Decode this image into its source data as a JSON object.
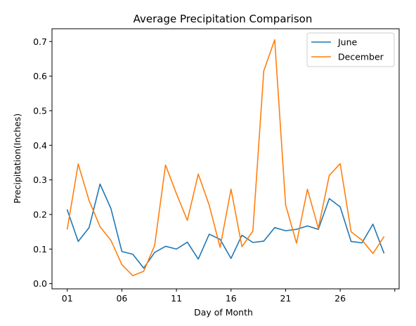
{
  "chart_data": {
    "type": "line",
    "title": "Average Precipitation Comparison",
    "xlabel": "Day of Month",
    "ylabel": "Precipitation(Inches)",
    "x": [
      "01",
      "02",
      "03",
      "04",
      "05",
      "06",
      "07",
      "08",
      "09",
      "10",
      "11",
      "12",
      "13",
      "14",
      "15",
      "16",
      "17",
      "18",
      "19",
      "20",
      "21",
      "22",
      "23",
      "24",
      "25",
      "26",
      "27",
      "28",
      "29",
      "30"
    ],
    "xticks": [
      "01",
      "06",
      "11",
      "16",
      "21",
      "26",
      ""
    ],
    "xlim": [
      -1.4,
      30.4
    ],
    "ylim": [
      -0.015,
      0.737
    ],
    "yticks": [
      0.0,
      0.1,
      0.2,
      0.3,
      0.4,
      0.5,
      0.6,
      0.7
    ],
    "ytick_labels": [
      "0.0",
      "0.1",
      "0.2",
      "0.3",
      "0.4",
      "0.5",
      "0.6",
      "0.7"
    ],
    "grid": false,
    "legend_position": "upper-right",
    "series": [
      {
        "name": "June",
        "color": "#1f77b4",
        "values": [
          0.213,
          0.122,
          0.162,
          0.288,
          0.217,
          0.093,
          0.085,
          0.045,
          0.09,
          0.108,
          0.1,
          0.12,
          0.071,
          0.143,
          0.128,
          0.073,
          0.14,
          0.119,
          0.123,
          0.162,
          0.153,
          0.157,
          0.167,
          0.157,
          0.246,
          0.222,
          0.122,
          0.118,
          0.172,
          0.089
        ]
      },
      {
        "name": "December",
        "color": "#ff7f0e",
        "values": [
          0.158,
          0.346,
          0.24,
          0.165,
          0.125,
          0.055,
          0.023,
          0.036,
          0.11,
          0.343,
          0.26,
          0.183,
          0.317,
          0.227,
          0.105,
          0.273,
          0.107,
          0.152,
          0.615,
          0.705,
          0.228,
          0.117,
          0.273,
          0.16,
          0.313,
          0.347,
          0.15,
          0.126,
          0.087,
          0.135
        ]
      }
    ]
  }
}
